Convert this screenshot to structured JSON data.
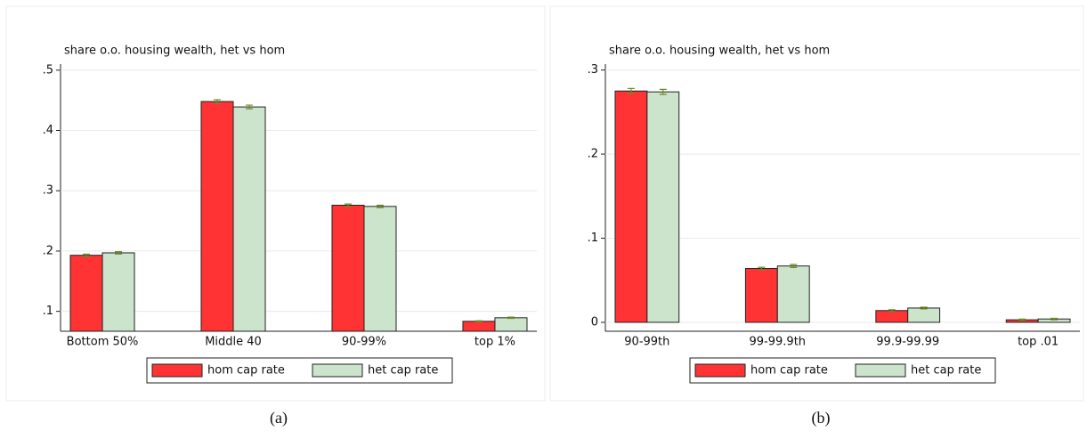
{
  "chart_data": [
    {
      "type": "bar",
      "title": "share o.o. housing wealth, het vs hom",
      "caption": "(a)",
      "categories": [
        "Bottom 50%",
        "Middle 40",
        "90-99%",
        "top 1%"
      ],
      "series": [
        {
          "name": "hom cap rate",
          "color": "#ff3333",
          "values": [
            0.193,
            0.448,
            0.276,
            0.0835
          ],
          "errors": [
            0.002,
            0.003,
            0.002,
            0.0008
          ]
        },
        {
          "name": "het cap rate",
          "color": "#cce3cc",
          "values": [
            0.197,
            0.439,
            0.274,
            0.0894
          ],
          "errors": [
            0.002,
            0.003,
            0.002,
            0.001
          ]
        }
      ],
      "ylim": [
        0.067,
        0.51
      ],
      "yticks": [
        {
          "value": 0.1,
          "label": ".1"
        },
        {
          "value": 0.2,
          "label": ".2"
        },
        {
          "value": 0.3,
          "label": ".3"
        },
        {
          "value": 0.4,
          "label": ".4"
        },
        {
          "value": 0.5,
          "label": ".5"
        }
      ],
      "grid": true,
      "error_color": "#6b8e23"
    },
    {
      "type": "bar",
      "title": "share o.o. housing wealth, het vs hom",
      "caption": "(b)",
      "categories": [
        "90-99th",
        "99-99.9th",
        "99.9-99.99",
        "top .01"
      ],
      "series": [
        {
          "name": "hom cap rate",
          "color": "#ff3333",
          "values": [
            0.275,
            0.064,
            0.014,
            0.003
          ],
          "errors": [
            0.003,
            0.0015,
            0.001,
            0.0008
          ]
        },
        {
          "name": "het cap rate",
          "color": "#cce3cc",
          "values": [
            0.274,
            0.067,
            0.017,
            0.004
          ],
          "errors": [
            0.003,
            0.0018,
            0.001,
            0.0008
          ]
        }
      ],
      "ylim": [
        -0.0106,
        0.307
      ],
      "yticks": [
        0,
        {
          "value": 0.1,
          "label": ".1"
        },
        {
          "value": 0.2,
          "label": ".2"
        },
        {
          "value": 0.3,
          "label": ".3"
        }
      ],
      "grid": true,
      "error_color": "#6b8e23"
    }
  ]
}
